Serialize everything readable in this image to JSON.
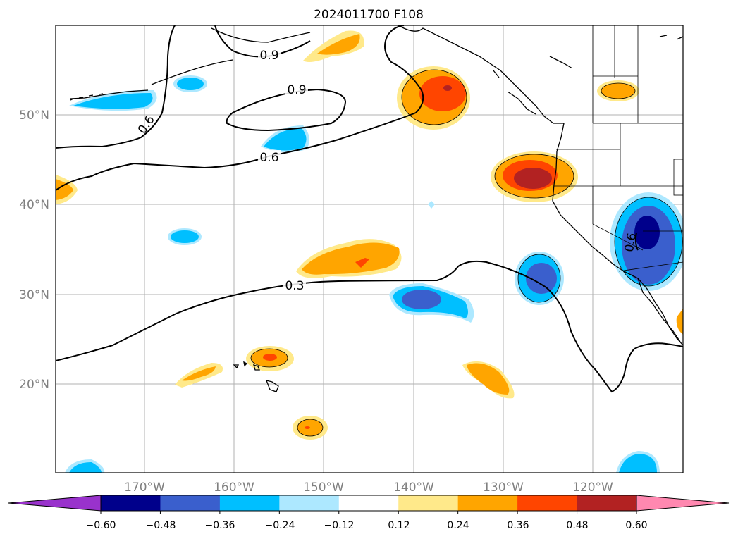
{
  "title": "2024011700 F108",
  "map": {
    "lat_labels": [
      "50°N",
      "40°N",
      "30°N",
      "20°N"
    ],
    "lon_labels": [
      "170°W",
      "160°W",
      "150°W",
      "140°W",
      "130°W",
      "120°W"
    ],
    "contour_labels": [
      "0.9",
      "0.9",
      "0.6",
      "0.6",
      "0.3",
      "0.6"
    ]
  },
  "colorbar": {
    "colors": [
      "#9932cc",
      "#00008b",
      "#3a5fcd",
      "#00bfff",
      "#ade8ff",
      "#ffffff",
      "#ffe98a",
      "#ffa500",
      "#ff4500",
      "#b22222",
      "#ff88b0"
    ],
    "tick_labels": [
      "−0.60",
      "−0.48",
      "−0.36",
      "−0.24",
      "−0.12",
      "0.12",
      "0.24",
      "0.36",
      "0.48",
      "0.60"
    ]
  }
}
